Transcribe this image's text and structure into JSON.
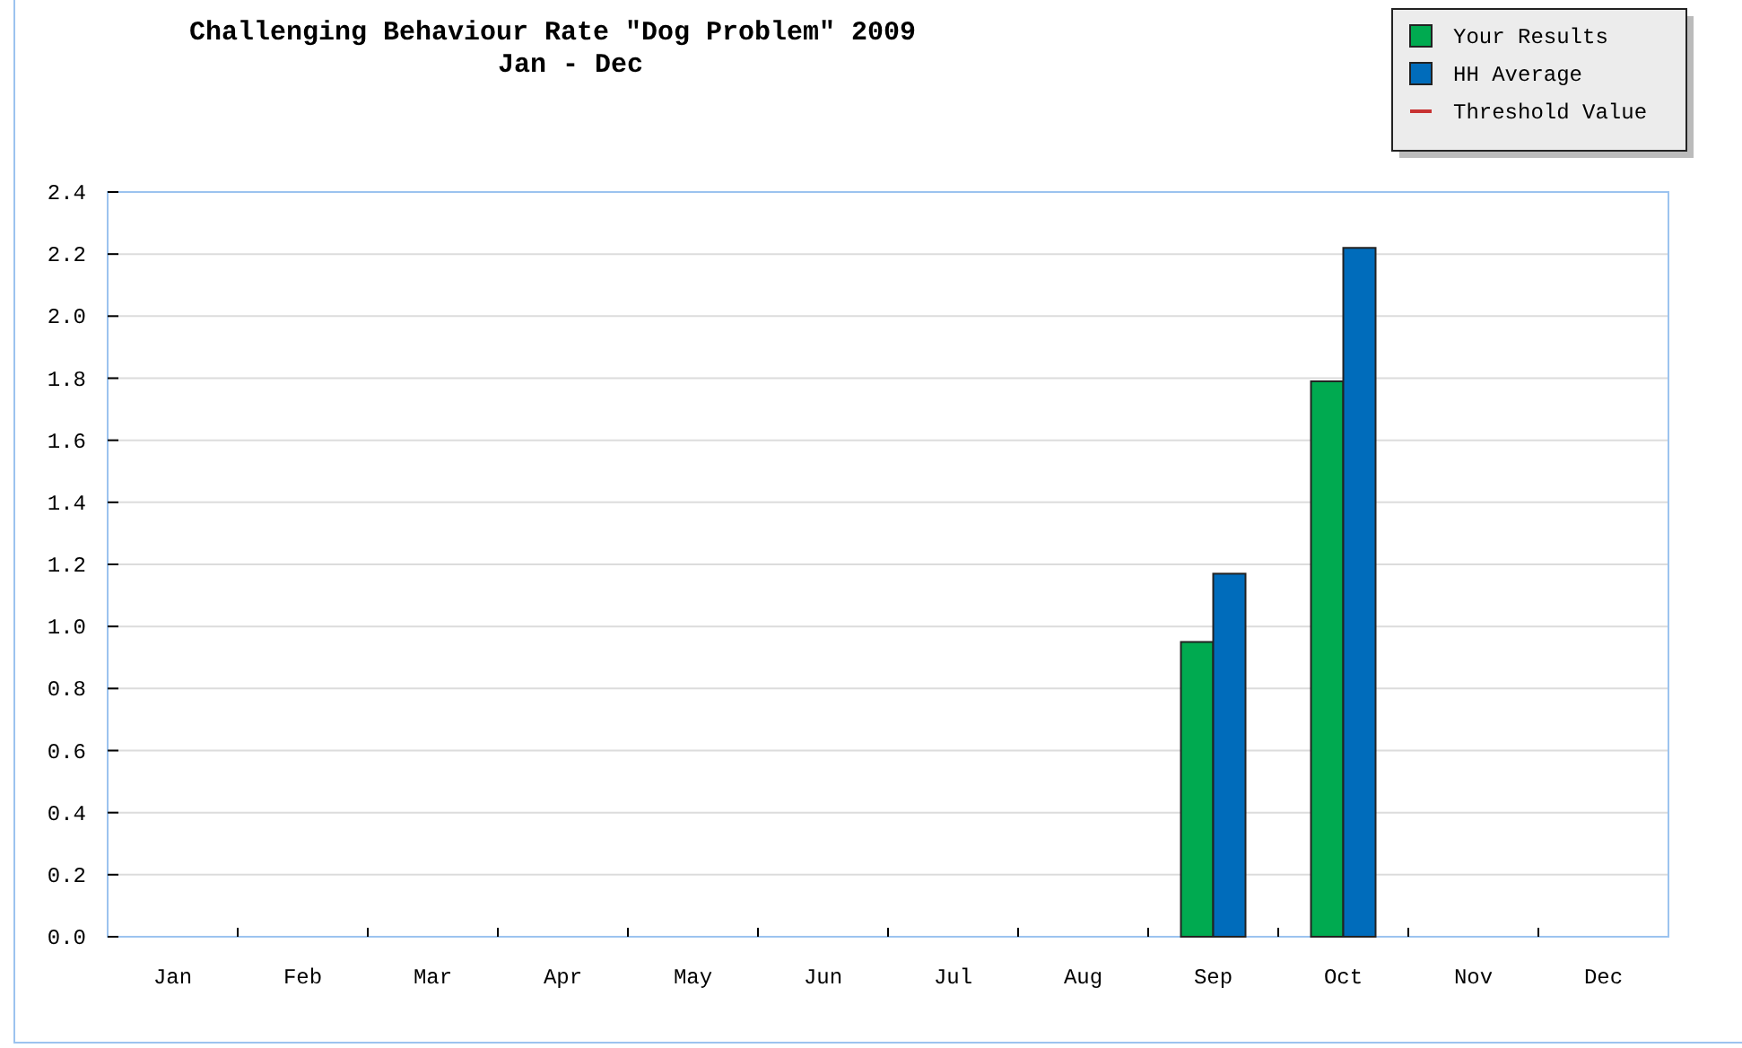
{
  "chart_data": {
    "type": "bar",
    "title": "Challenging Behaviour Rate \"Dog Problem\" 2009",
    "subtitle": "Jan - Dec",
    "categories": [
      "Jan",
      "Feb",
      "Mar",
      "Apr",
      "May",
      "Jun",
      "Jul",
      "Aug",
      "Sep",
      "Oct",
      "Nov",
      "Dec"
    ],
    "series": [
      {
        "name": "Your Results",
        "color": "#00aa50",
        "values": [
          null,
          null,
          null,
          null,
          null,
          null,
          null,
          null,
          0.95,
          1.79,
          null,
          null
        ]
      },
      {
        "name": "HH Average",
        "color": "#006cbb",
        "values": [
          null,
          null,
          null,
          null,
          null,
          null,
          null,
          null,
          1.17,
          2.22,
          null,
          null
        ]
      },
      {
        "name": "Threshold Value",
        "type": "line",
        "color": "#c83232",
        "values": [
          null,
          null,
          null,
          null,
          null,
          null,
          null,
          null,
          null,
          null,
          null,
          null
        ]
      }
    ],
    "ylim": [
      0,
      2.4
    ],
    "yticks": [
      {
        "value": 0,
        "label": "0.0"
      },
      {
        "value": 0.2,
        "label": "0.2"
      },
      {
        "value": 0.4,
        "label": "0.4"
      },
      {
        "value": 0.6,
        "label": "0.6"
      },
      {
        "value": 0.8,
        "label": "0.8"
      },
      {
        "value": 1,
        "label": "1.0"
      },
      {
        "value": 1.2,
        "label": "1.2"
      },
      {
        "value": 1.4,
        "label": "1.4"
      },
      {
        "value": 1.6,
        "label": "1.6"
      },
      {
        "value": 1.8,
        "label": "1.8"
      },
      {
        "value": 2,
        "label": "2.0"
      },
      {
        "value": 2.2,
        "label": "2.2"
      },
      {
        "value": 2.4,
        "label": "2.4"
      }
    ],
    "grid": "y",
    "legend": "top right"
  }
}
